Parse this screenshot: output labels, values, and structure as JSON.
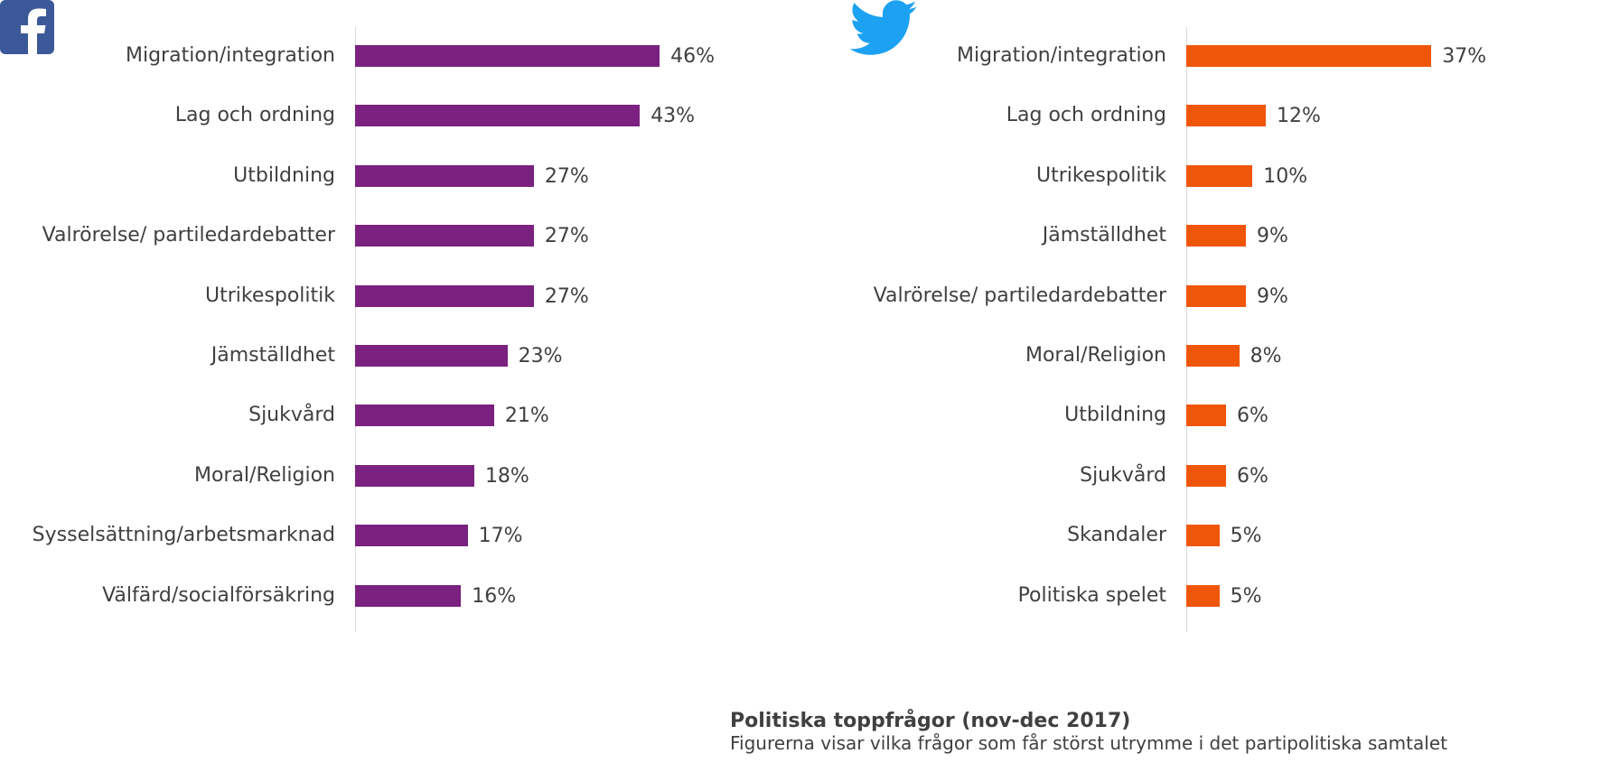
{
  "logos": {
    "left": "facebook-icon",
    "right": "twitter-icon"
  },
  "colors": {
    "facebook": "#7b217f",
    "twitter": "#f0560a",
    "facebook_logo": "#3b5998",
    "twitter_logo": "#1da1f2"
  },
  "caption": {
    "title": "Politiska toppfrågor (nov-dec 2017)",
    "subtitle": "Figurerna visar vilka frågor som får störst utrymme i det partipolitiska samtalet"
  },
  "chart_data": [
    {
      "type": "bar",
      "orientation": "horizontal",
      "platform_icon": "facebook-icon",
      "categories": [
        "Migration/integration",
        "Lag och ordning",
        "Utbildning",
        "Valrörelse/ partiledardebatter",
        "Utrikespolitik",
        "Jämställdhet",
        "Sjukvård",
        "Moral/Religion",
        "Sysselsättning/arbetsmarknad",
        "Välfärd/socialförsäkring"
      ],
      "values": [
        46,
        43,
        27,
        27,
        27,
        23,
        21,
        18,
        17,
        16
      ],
      "value_labels": [
        "46%",
        "43%",
        "27%",
        "27%",
        "27%",
        "23%",
        "21%",
        "18%",
        "17%",
        "16%"
      ],
      "unit": "%",
      "xlim": [
        0,
        46
      ],
      "grid": false
    },
    {
      "type": "bar",
      "orientation": "horizontal",
      "platform_icon": "twitter-icon",
      "categories": [
        "Migration/integration",
        "Lag och ordning",
        "Utrikespolitik",
        "Jämställdhet",
        "Valrörelse/ partiledardebatter",
        "Moral/Religion",
        "Utbildning",
        "Sjukvård",
        "Skandaler",
        "Politiska spelet"
      ],
      "values": [
        37,
        12,
        10,
        9,
        9,
        8,
        6,
        6,
        5,
        5
      ],
      "value_labels": [
        "37%",
        "12%",
        "10%",
        "9%",
        "9%",
        "8%",
        "6%",
        "6%",
        "5%",
        "5%"
      ],
      "unit": "%",
      "xlim": [
        0,
        46
      ],
      "grid": false
    }
  ]
}
